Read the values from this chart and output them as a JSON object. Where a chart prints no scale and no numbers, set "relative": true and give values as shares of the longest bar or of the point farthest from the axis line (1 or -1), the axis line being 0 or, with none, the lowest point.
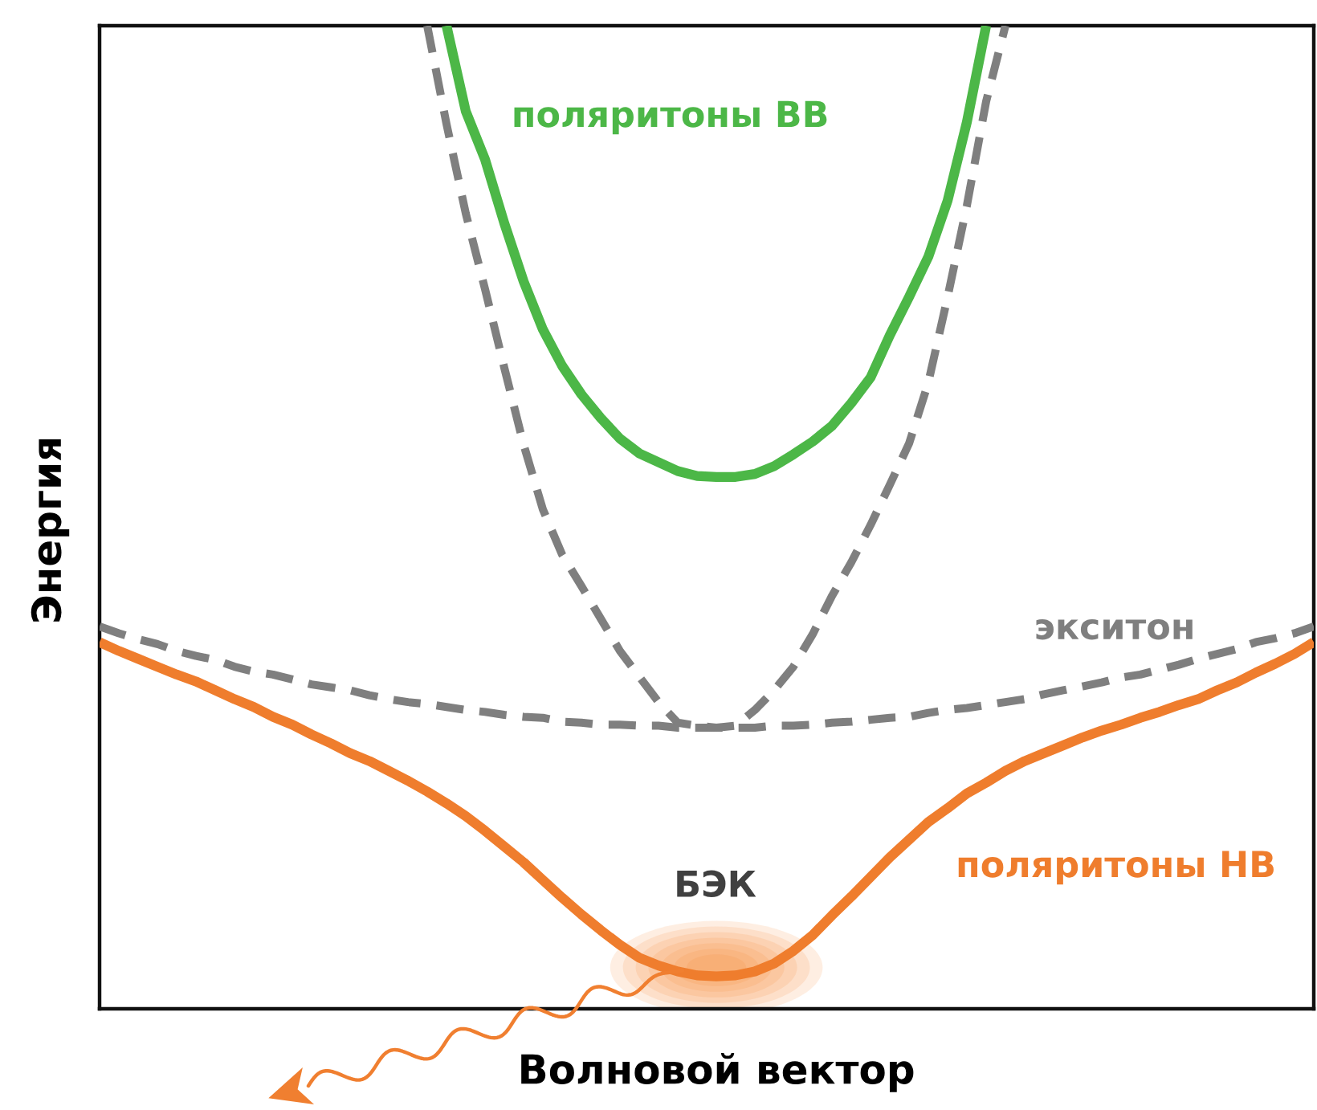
{
  "chart_data": {
    "type": "line",
    "relative": true,
    "xlabel": "Волновой вектор",
    "ylabel": "Энергия",
    "annotations": [
      "БЭК"
    ],
    "categories": [
      null,
      null,
      null,
      null,
      null,
      null,
      null,
      null,
      null,
      null,
      null,
      null,
      null,
      null,
      null,
      null,
      null,
      null,
      null,
      null,
      null,
      null,
      null,
      null,
      null,
      null,
      null,
      null,
      null,
      null,
      null,
      null,
      null,
      null,
      null,
      null,
      null,
      null,
      null,
      null,
      null,
      null,
      null,
      null,
      null,
      null,
      null,
      null,
      null,
      null,
      null,
      null,
      null,
      null,
      null,
      null,
      null,
      null,
      null,
      null,
      null,
      null,
      null,
      null
    ],
    "series": [
      {
        "name": "поляритоны НВ",
        "color": "#ef7d2d",
        "values": [
          0.373,
          0.364,
          0.356,
          0.348,
          0.34,
          0.333,
          0.324,
          0.315,
          0.307,
          0.297,
          0.289,
          0.279,
          0.27,
          0.26,
          0.252,
          0.242,
          0.232,
          0.221,
          0.209,
          0.196,
          0.181,
          0.165,
          0.149,
          0.131,
          0.113,
          0.096,
          0.08,
          0.065,
          0.052,
          0.044,
          0.038,
          0.034,
          0.033,
          0.034,
          0.038,
          0.046,
          0.059,
          0.075,
          0.095,
          0.114,
          0.134,
          0.154,
          0.172,
          0.19,
          0.204,
          0.219,
          0.23,
          0.242,
          0.252,
          0.26,
          0.268,
          0.276,
          0.283,
          0.289,
          0.296,
          0.302,
          0.309,
          0.315,
          0.324,
          0.332,
          0.342,
          0.351,
          0.361,
          0.373
        ]
      },
      {
        "name": "экситон",
        "color": "#7f7f7f",
        "line_style": "dashed",
        "values": [
          0.389,
          0.382,
          0.376,
          0.371,
          0.364,
          0.359,
          0.355,
          0.348,
          0.343,
          0.34,
          0.335,
          0.33,
          0.327,
          0.324,
          0.319,
          0.315,
          0.312,
          0.31,
          0.307,
          0.304,
          0.302,
          0.299,
          0.297,
          0.296,
          0.292,
          0.291,
          0.289,
          0.289,
          0.288,
          0.288,
          0.286,
          0.286,
          0.286,
          0.286,
          0.286,
          0.288,
          0.288,
          0.289,
          0.291,
          0.292,
          0.294,
          0.296,
          0.297,
          0.301,
          0.304,
          0.306,
          0.309,
          0.312,
          0.315,
          0.32,
          0.324,
          0.328,
          0.332,
          0.337,
          0.34,
          0.345,
          0.35,
          0.356,
          0.361,
          0.366,
          0.373,
          0.377,
          0.382,
          0.389
        ]
      },
      {
        "color": "#7f7f7f",
        "line_style": "dashed",
        "values": [
          null,
          null,
          null,
          null,
          null,
          null,
          null,
          null,
          null,
          null,
          null,
          null,
          null,
          null,
          null,
          null,
          null,
          1.0,
          0.9,
          0.809,
          0.732,
          0.652,
          0.574,
          0.508,
          0.462,
          0.43,
          0.397,
          0.364,
          0.338,
          0.312,
          0.291,
          0.288,
          0.286,
          0.288,
          0.304,
          0.324,
          0.348,
          0.381,
          0.42,
          0.454,
          0.492,
          0.533,
          0.575,
          0.637,
          0.724,
          0.817,
          0.923,
          1.0,
          null,
          null,
          null,
          null,
          null,
          null,
          null,
          null,
          null,
          null,
          null,
          null,
          null,
          null,
          null,
          null
        ]
      },
      {
        "name": "поляритоны ВВ",
        "color": "#4cb747",
        "values": [
          null,
          null,
          null,
          null,
          null,
          null,
          null,
          null,
          null,
          null,
          null,
          null,
          null,
          null,
          null,
          null,
          null,
          null,
          1.0,
          0.913,
          0.864,
          0.799,
          0.74,
          0.691,
          0.654,
          0.625,
          0.601,
          0.58,
          0.565,
          0.556,
          0.547,
          0.542,
          0.541,
          0.541,
          0.544,
          0.552,
          0.564,
          0.577,
          0.593,
          0.616,
          0.642,
          0.685,
          0.724,
          0.765,
          0.822,
          0.902,
          1.0,
          null,
          null,
          null,
          null,
          null,
          null,
          null,
          null,
          null,
          null,
          null,
          null,
          null,
          null,
          null,
          null,
          null
        ]
      }
    ]
  }
}
